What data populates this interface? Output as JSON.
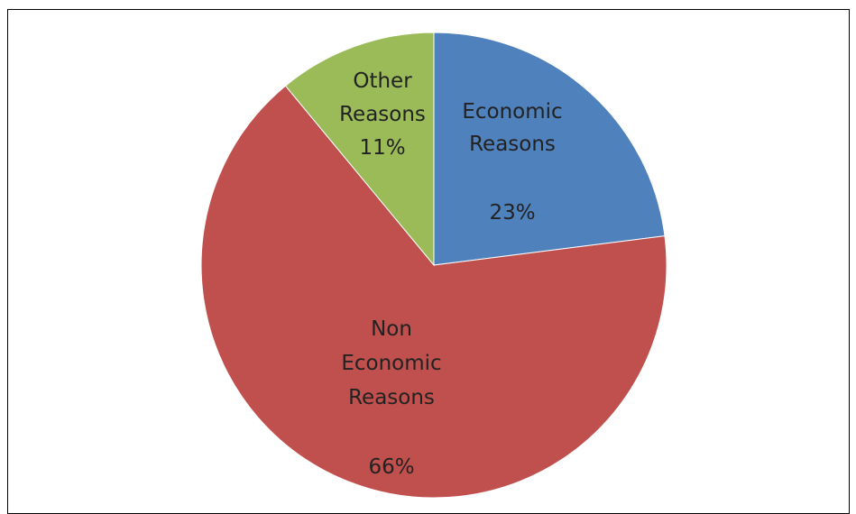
{
  "chart_data": {
    "type": "pie",
    "title": "",
    "slices": [
      {
        "name": "Economic Reasons",
        "label_lines": [
          "Economic",
          "Reasons"
        ],
        "value_label": "23%",
        "value": 23,
        "color": "#4f81bd"
      },
      {
        "name": "Non Economic Reasons",
        "label_lines": [
          "Non",
          "Economic",
          "Reasons"
        ],
        "value_label": "66%",
        "value": 66,
        "color": "#c0504d"
      },
      {
        "name": "Other Reasons",
        "label_lines": [
          "Other",
          "Reasons"
        ],
        "value_label": "11%",
        "value": 11,
        "color": "#9bbb59"
      }
    ],
    "start": "12 o'clock",
    "direction": "clockwise",
    "legend": "none (labels inside slices)"
  }
}
